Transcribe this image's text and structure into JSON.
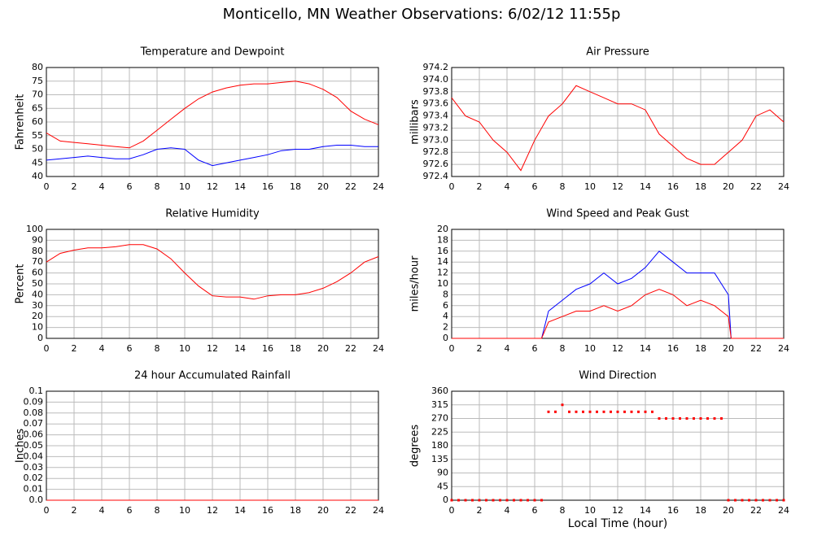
{
  "title": "Monticello, MN Weather Observations: 6/02/12 11:55p",
  "chart_data": [
    {
      "type": "line",
      "title": "Temperature and Dewpoint",
      "ylabel": "Fahrenheit",
      "x": [
        0,
        1,
        2,
        3,
        4,
        5,
        6,
        7,
        8,
        9,
        10,
        11,
        12,
        13,
        14,
        15,
        16,
        17,
        18,
        19,
        20,
        21,
        22,
        23,
        24
      ],
      "series": [
        {
          "color": "#ff0000",
          "values": [
            56,
            53,
            52.5,
            52,
            51.5,
            51,
            50.5,
            53,
            57,
            61,
            65,
            68.5,
            71,
            72.5,
            73.5,
            74,
            74,
            74.5,
            75,
            74,
            72,
            69,
            64,
            61,
            59
          ]
        },
        {
          "color": "#0000ff",
          "values": [
            46,
            46.5,
            47,
            47.5,
            47,
            46.5,
            46.5,
            48,
            50,
            50.5,
            50,
            46,
            44,
            45,
            46,
            47,
            48,
            49.5,
            50,
            50,
            51,
            51.5,
            51.5,
            51,
            51
          ]
        }
      ],
      "xlim": [
        0,
        24
      ],
      "xticks": [
        0,
        2,
        4,
        6,
        8,
        10,
        12,
        14,
        16,
        18,
        20,
        22,
        24
      ],
      "ylim": [
        40,
        80
      ],
      "yticks": [
        40,
        45,
        50,
        55,
        60,
        65,
        70,
        75,
        80
      ],
      "grid": true
    },
    {
      "type": "line",
      "title": "Air Pressure",
      "ylabel": "millibars",
      "x": [
        0,
        1,
        2,
        3,
        4,
        5,
        6,
        7,
        8,
        9,
        10,
        11,
        12,
        13,
        14,
        15,
        16,
        17,
        18,
        19,
        20,
        21,
        22,
        23,
        24
      ],
      "series": [
        {
          "color": "#ff0000",
          "values": [
            973.7,
            973.4,
            973.3,
            973,
            972.8,
            972.5,
            973,
            973.4,
            973.6,
            973.9,
            973.8,
            973.7,
            973.6,
            973.6,
            973.5,
            973.1,
            972.9,
            972.7,
            972.6,
            972.6,
            972.8,
            973,
            973.4,
            973.5,
            973.3
          ]
        }
      ],
      "xlim": [
        0,
        24
      ],
      "xticks": [
        0,
        2,
        4,
        6,
        8,
        10,
        12,
        14,
        16,
        18,
        20,
        22,
        24
      ],
      "ylim": [
        972.4,
        974.2
      ],
      "yticks": [
        972.4,
        972.6,
        972.8,
        {
          "value": 973,
          "label": "973.0"
        },
        973.2,
        973.4,
        973.6,
        973.8,
        {
          "value": 974,
          "label": "974.0"
        },
        974.2
      ],
      "grid": true
    },
    {
      "type": "line",
      "title": "Relative Humidity",
      "ylabel": "Percent",
      "x": [
        0,
        1,
        2,
        3,
        4,
        5,
        6,
        7,
        8,
        9,
        10,
        11,
        12,
        13,
        14,
        15,
        16,
        17,
        18,
        19,
        20,
        21,
        22,
        23,
        24
      ],
      "series": [
        {
          "color": "#ff0000",
          "values": [
            70,
            78,
            81,
            83,
            83,
            84,
            86,
            86,
            82,
            73,
            60,
            48,
            39,
            38,
            38,
            36,
            39,
            40,
            40,
            42,
            46,
            52,
            60,
            70,
            75
          ]
        }
      ],
      "xlim": [
        0,
        24
      ],
      "xticks": [
        0,
        2,
        4,
        6,
        8,
        10,
        12,
        14,
        16,
        18,
        20,
        22,
        24
      ],
      "ylim": [
        0,
        100
      ],
      "yticks": [
        0,
        10,
        20,
        30,
        40,
        50,
        60,
        70,
        80,
        90,
        100
      ],
      "grid": true
    },
    {
      "type": "line",
      "title": "Wind Speed and Peak Gust",
      "ylabel": "miles/hour",
      "x": [
        0,
        6.5,
        7,
        8,
        9,
        10,
        11,
        12,
        13,
        14,
        15,
        16,
        17,
        18,
        19,
        20,
        20.2,
        24
      ],
      "series": [
        {
          "color": "#0000ff",
          "values": [
            0,
            0,
            5,
            7,
            9,
            10,
            12,
            10,
            11,
            13,
            16,
            14,
            12,
            12,
            12,
            8,
            0,
            0
          ]
        },
        {
          "color": "#ff0000",
          "values": [
            0,
            0,
            3,
            4,
            5,
            5,
            6,
            5,
            6,
            8,
            9,
            8,
            6,
            7,
            6,
            4,
            0,
            0
          ]
        }
      ],
      "xlim": [
        0,
        24
      ],
      "xticks": [
        0,
        2,
        4,
        6,
        8,
        10,
        12,
        14,
        16,
        18,
        20,
        22,
        24
      ],
      "ylim": [
        0,
        20
      ],
      "yticks": [
        0,
        2,
        4,
        6,
        8,
        10,
        12,
        14,
        16,
        18,
        20
      ],
      "grid": true
    },
    {
      "type": "line",
      "title": "24 hour Accumulated Rainfall",
      "ylabel": "Inches",
      "x": [
        0,
        1,
        2,
        3,
        4,
        5,
        6,
        7,
        8,
        9,
        10,
        11,
        12,
        13,
        14,
        15,
        16,
        17,
        18,
        19,
        20,
        21,
        22,
        23,
        24
      ],
      "series": [
        {
          "color": "#ff0000",
          "values": [
            0,
            0,
            0,
            0,
            0,
            0,
            0,
            0,
            0,
            0,
            0,
            0,
            0,
            0,
            0,
            0,
            0,
            0,
            0,
            0,
            0,
            0,
            0,
            0,
            0
          ]
        }
      ],
      "xlim": [
        0,
        24
      ],
      "xticks": [
        0,
        2,
        4,
        6,
        8,
        10,
        12,
        14,
        16,
        18,
        20,
        22,
        24
      ],
      "ylim": [
        0,
        0.1
      ],
      "yticks": [
        {
          "value": 0,
          "label": "0.0"
        },
        0.01,
        0.02,
        0.03,
        0.04,
        0.05,
        0.06,
        0.07,
        0.08,
        0.09,
        0.1
      ],
      "grid": true
    },
    {
      "type": "scatter",
      "title": "Wind Direction",
      "ylabel": "degrees",
      "xlabel": "Local Time (hour)",
      "x": [
        0,
        0.5,
        1,
        1.5,
        2,
        2.5,
        3,
        3.5,
        4,
        4.5,
        5,
        5.5,
        6,
        6.5,
        7,
        7.5,
        8,
        8.5,
        9,
        9.5,
        10,
        10.5,
        11,
        11.5,
        12,
        12.5,
        13,
        13.5,
        14,
        14.5,
        15,
        15.5,
        16,
        16.5,
        17,
        17.5,
        18,
        18.5,
        19,
        19.5,
        20,
        20.5,
        21,
        21.5,
        22,
        22.5,
        23,
        23.5,
        24
      ],
      "series": [
        {
          "color": "#ff0000",
          "values": [
            0,
            0,
            0,
            0,
            0,
            0,
            0,
            0,
            0,
            0,
            0,
            0,
            0,
            0,
            292,
            292,
            315,
            292,
            292,
            292,
            292,
            292,
            292,
            292,
            292,
            292,
            292,
            292,
            292,
            292,
            270,
            270,
            270,
            270,
            270,
            270,
            270,
            270,
            270,
            270,
            0,
            0,
            0,
            0,
            0,
            0,
            0,
            0,
            0
          ]
        }
      ],
      "xlim": [
        0,
        24
      ],
      "xticks": [
        0,
        2,
        4,
        6,
        8,
        10,
        12,
        14,
        16,
        18,
        20,
        22,
        24
      ],
      "ylim": [
        0,
        360
      ],
      "yticks": [
        0,
        45,
        90,
        135,
        180,
        225,
        270,
        315,
        360
      ],
      "grid": true
    }
  ]
}
